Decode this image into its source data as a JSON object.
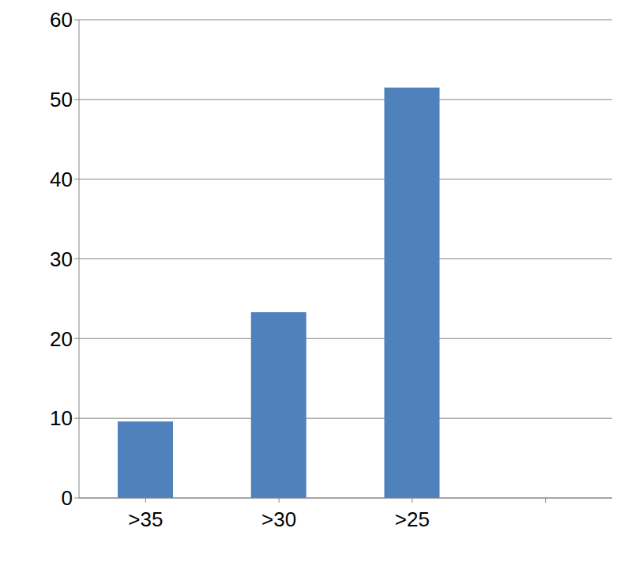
{
  "chart_data": {
    "type": "bar",
    "categories": [
      ">35",
      ">30",
      ">25",
      null
    ],
    "values": [
      9.6,
      23.3,
      51.5,
      null
    ],
    "color": "#4f81bd",
    "ylim": [
      0,
      60
    ],
    "yticks": [
      0,
      10,
      20,
      30,
      40,
      50,
      60
    ],
    "grid": true
  }
}
